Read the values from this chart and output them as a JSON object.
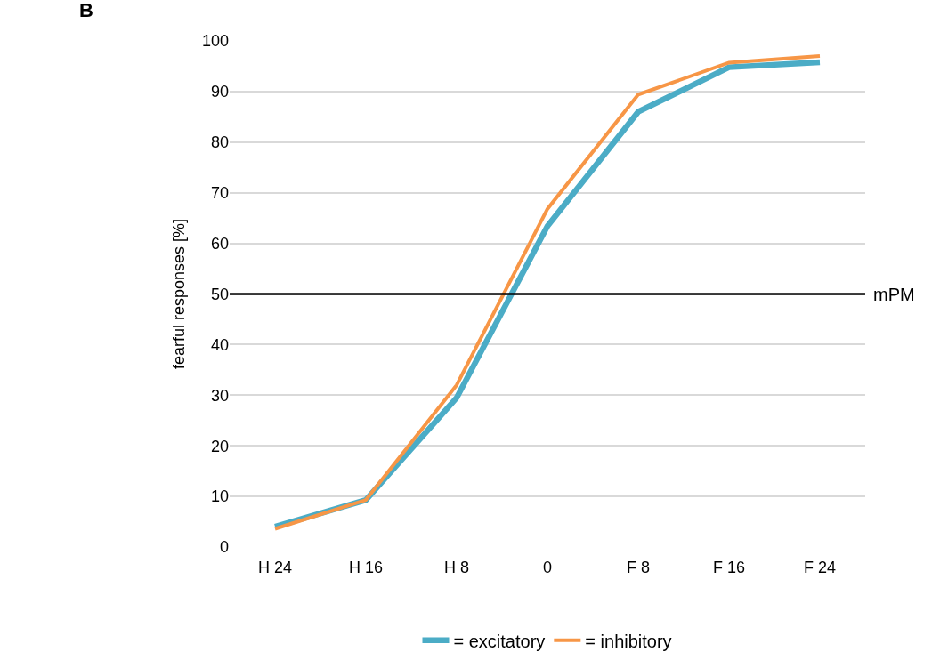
{
  "chart_data": {
    "type": "line",
    "ylabel": "fearful responses [%]",
    "annotations": [
      "B"
    ],
    "categories": [
      "H 24",
      "H 16",
      "H 8",
      "0",
      "F 8",
      "F 16",
      "F 24"
    ],
    "series": [
      {
        "name": "= excitatory",
        "color": "#4bacc6",
        "values": [
          4,
          9.3,
          29.5,
          63.4,
          86,
          94.8,
          95.8
        ]
      },
      {
        "name": "= inhibitory",
        "color": "#f79646",
        "values": [
          3.6,
          9.3,
          32,
          66.8,
          89.4,
          95.7,
          97
        ]
      }
    ],
    "ylim": [
      0,
      100
    ],
    "yticks": [
      0,
      10,
      20,
      30,
      40,
      50,
      60,
      70,
      80,
      90,
      100
    ],
    "grid": "y",
    "legend": "bottom",
    "marker": "none",
    "line_style": "solid",
    "ref_lines": [
      {
        "axis": "y",
        "value": 50,
        "label": "mPM",
        "color": "#000000"
      }
    ]
  }
}
